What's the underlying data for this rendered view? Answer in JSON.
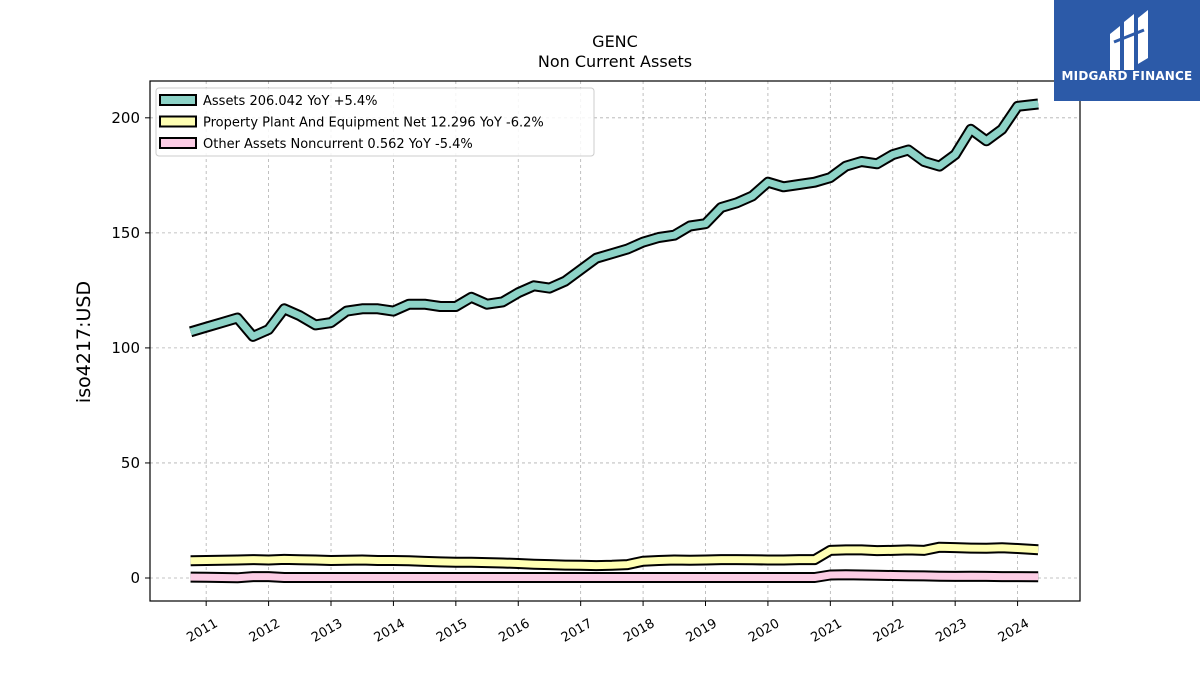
{
  "brand": {
    "name": "MIDGARD FINANCE",
    "color": "#2c5aa8"
  },
  "chart_data": {
    "type": "line",
    "title": "GENC",
    "subtitle": "Non Current  Assets",
    "xlabel": "",
    "ylabel": "iso4217:USD",
    "ylim": [
      -10,
      216
    ],
    "yticks": [
      0,
      50,
      100,
      150,
      200
    ],
    "xlim": [
      2010.1,
      2025.0
    ],
    "xticks": [
      2011,
      2012,
      2013,
      2014,
      2015,
      2016,
      2017,
      2018,
      2019,
      2020,
      2021,
      2022,
      2023,
      2024
    ],
    "grid": true,
    "legend_position": "top-left",
    "series": [
      {
        "name": "Assets",
        "legend_label": "Assets  206.042 YoY +5.4%",
        "color": "#8dd3c7",
        "x": [
          2010.75,
          2011.0,
          2011.25,
          2011.5,
          2011.75,
          2012.0,
          2012.25,
          2012.5,
          2012.75,
          2013.0,
          2013.25,
          2013.5,
          2013.75,
          2014.0,
          2014.25,
          2014.5,
          2014.75,
          2015.0,
          2015.25,
          2015.5,
          2015.75,
          2016.0,
          2016.25,
          2016.5,
          2016.75,
          2017.0,
          2017.25,
          2017.5,
          2017.75,
          2018.0,
          2018.25,
          2018.5,
          2018.75,
          2019.0,
          2019.25,
          2019.5,
          2019.75,
          2020.0,
          2020.25,
          2020.5,
          2020.75,
          2021.0,
          2021.25,
          2021.5,
          2021.75,
          2022.0,
          2022.25,
          2022.5,
          2022.75,
          2023.0,
          2023.25,
          2023.5,
          2023.75,
          2024.0,
          2024.33
        ],
        "y": [
          107,
          109,
          111,
          113,
          105,
          108,
          117,
          114,
          110,
          111,
          116,
          117,
          117,
          116,
          119,
          119,
          118,
          118,
          122,
          119,
          120,
          124,
          127,
          126,
          129,
          134,
          139,
          141,
          143,
          146,
          148,
          149,
          153,
          154,
          161,
          163,
          166,
          172,
          170,
          171,
          172,
          174,
          179,
          181,
          180,
          184,
          186,
          181,
          179,
          184,
          195,
          190,
          195,
          205,
          206
        ]
      },
      {
        "name": "Property Plant And Equipment Net",
        "legend_label": "Property Plant And Equipment Net  12.296 YoY -6.2%",
        "color": "#ffffb3",
        "x": [
          2010.75,
          2011.0,
          2011.25,
          2011.5,
          2011.75,
          2012.0,
          2012.25,
          2012.5,
          2012.75,
          2013.0,
          2013.25,
          2013.5,
          2013.75,
          2014.0,
          2014.25,
          2014.5,
          2014.75,
          2015.0,
          2015.25,
          2015.5,
          2015.75,
          2016.0,
          2016.25,
          2016.5,
          2016.75,
          2017.0,
          2017.25,
          2017.5,
          2017.75,
          2018.0,
          2018.25,
          2018.5,
          2018.75,
          2019.0,
          2019.25,
          2019.5,
          2019.75,
          2020.0,
          2020.25,
          2020.5,
          2020.75,
          2021.0,
          2021.25,
          2021.5,
          2021.75,
          2022.0,
          2022.25,
          2022.5,
          2022.75,
          2023.0,
          2023.25,
          2023.5,
          2023.75,
          2024.0,
          2024.33
        ],
        "y": [
          7.5,
          7.6,
          7.7,
          7.8,
          8.0,
          7.8,
          8.1,
          7.9,
          7.8,
          7.6,
          7.7,
          7.8,
          7.6,
          7.6,
          7.5,
          7.2,
          7.0,
          6.8,
          6.8,
          6.7,
          6.5,
          6.3,
          6.0,
          5.8,
          5.6,
          5.5,
          5.4,
          5.5,
          5.8,
          7.3,
          7.6,
          7.8,
          7.7,
          7.8,
          8.0,
          8.0,
          7.9,
          7.8,
          7.8,
          8.0,
          8.0,
          12.0,
          12.2,
          12.2,
          11.9,
          12.0,
          12.2,
          12.0,
          13.4,
          13.2,
          13.0,
          12.9,
          13.1,
          12.8,
          12.3
        ]
      },
      {
        "name": "Other Assets Noncurrent",
        "legend_label": "Other Assets Noncurrent  0.562 YoY -5.4%",
        "color": "#fccde5",
        "x": [
          2010.75,
          2011.0,
          2011.25,
          2011.5,
          2011.75,
          2012.0,
          2012.25,
          2012.5,
          2012.75,
          2013.0,
          2013.25,
          2013.5,
          2013.75,
          2014.0,
          2014.25,
          2014.5,
          2014.75,
          2015.0,
          2015.25,
          2015.5,
          2015.75,
          2016.0,
          2016.25,
          2016.5,
          2016.75,
          2017.0,
          2017.25,
          2017.5,
          2017.75,
          2018.0,
          2018.25,
          2018.5,
          2018.75,
          2019.0,
          2019.25,
          2019.5,
          2019.75,
          2020.0,
          2020.25,
          2020.5,
          2020.75,
          2021.0,
          2021.25,
          2021.5,
          2021.75,
          2022.0,
          2022.25,
          2022.5,
          2022.75,
          2023.0,
          2023.25,
          2023.5,
          2023.75,
          2024.0,
          2024.33
        ],
        "y": [
          0.4,
          0.3,
          0.2,
          0.1,
          0.6,
          0.6,
          0.2,
          0.2,
          0.2,
          0.2,
          0.2,
          0.2,
          0.2,
          0.2,
          0.2,
          0.2,
          0.2,
          0.2,
          0.2,
          0.2,
          0.2,
          0.2,
          0.2,
          0.2,
          0.2,
          0.2,
          0.2,
          0.2,
          0.2,
          0.2,
          0.2,
          0.2,
          0.2,
          0.2,
          0.2,
          0.2,
          0.2,
          0.2,
          0.2,
          0.2,
          0.2,
          1.3,
          1.4,
          1.3,
          1.2,
          1.1,
          1.0,
          0.9,
          0.8,
          0.7,
          0.8,
          0.7,
          0.6,
          0.6,
          0.56
        ]
      }
    ]
  }
}
